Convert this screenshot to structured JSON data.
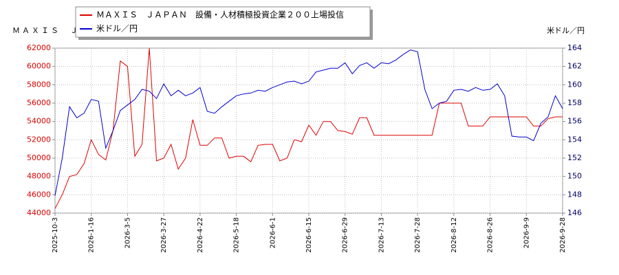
{
  "chart_data": {
    "type": "line",
    "y_label": "ＭＡＸＩＳ　ＪＡＰＡＮ　設備・人材積極投資企業２００上場投信",
    "y2_label": "米ドル／円",
    "categories": [
      "2025-10-3",
      null,
      null,
      null,
      null,
      "2026-1-16",
      null,
      null,
      null,
      null,
      "2026-3-5",
      null,
      null,
      null,
      null,
      "2026-3-27",
      null,
      null,
      null,
      null,
      "2026-4-22",
      null,
      null,
      null,
      null,
      "2026-5-18",
      null,
      null,
      null,
      null,
      "2026-6-1",
      null,
      null,
      null,
      null,
      "2026-6-15",
      null,
      null,
      null,
      null,
      "2026-6-29",
      null,
      null,
      null,
      null,
      "2026-7-13",
      null,
      null,
      null,
      null,
      "2026-7-28",
      null,
      null,
      null,
      null,
      "2026-8-12",
      null,
      null,
      null,
      null,
      "2026-8-26",
      null,
      null,
      null,
      null,
      "2026-9-9",
      null,
      null,
      null,
      null,
      "2026-9-28"
    ],
    "series": [
      {
        "name": "ＭＡＸＩＳ　ＪＡＰＡＮ　設備・人材積極投資企業２００上場投信",
        "color": "#dd0000",
        "axis": "y",
        "values": [
          44500,
          46000,
          48000,
          48200,
          49400,
          52000,
          50400,
          49800,
          53000,
          60600,
          60000,
          50200,
          51500,
          62000,
          49700,
          50000,
          51500,
          48800,
          50000,
          54200,
          51400,
          51400,
          52200,
          52200,
          50000,
          50200,
          50200,
          49600,
          51400,
          51500,
          51500,
          49700,
          50000,
          52000,
          51800,
          53600,
          52500,
          54000,
          54000,
          53000,
          52900,
          52600,
          54400,
          54400,
          52500,
          52500,
          52500,
          52500,
          52500,
          52500,
          52500,
          52500,
          52500,
          56000,
          56000,
          56000,
          56000,
          53500,
          53500,
          53500,
          54500,
          54500,
          54500,
          54500,
          54500,
          54500,
          53500,
          53500,
          54300,
          54500,
          54500
        ]
      },
      {
        "name": "米ドル／円",
        "color": "#0000cc",
        "axis": "y2",
        "values": [
          147.9,
          152,
          157.6,
          156.4,
          156.9,
          158.4,
          158.2,
          153.1,
          155,
          157.2,
          157.8,
          158.4,
          159.5,
          159.3,
          158.5,
          160.1,
          158.8,
          159.4,
          158.8,
          159.1,
          159.7,
          157.1,
          156.9,
          157.6,
          158.2,
          158.8,
          159,
          159.1,
          159.4,
          159.3,
          159.7,
          160,
          160.3,
          160.4,
          160.1,
          160.4,
          161.4,
          161.6,
          161.8,
          161.8,
          162.4,
          161.2,
          162.1,
          162.4,
          161.8,
          162.4,
          162.3,
          162.7,
          163.3,
          163.8,
          163.6,
          159.5,
          157.4,
          158,
          158.2,
          159.4,
          159.5,
          159.3,
          159.7,
          159.4,
          159.5,
          160.1,
          158.8,
          154.4,
          154.3,
          154.3,
          153.9,
          155.8,
          156.5,
          158.8,
          157.4
        ]
      }
    ],
    "ylim": [
      44000,
      62000
    ],
    "yticks": [
      44000,
      46000,
      48000,
      50000,
      52000,
      54000,
      56000,
      58000,
      60000,
      62000
    ],
    "y2lim": [
      146,
      164
    ],
    "y2ticks": [
      146,
      148,
      150,
      152,
      154,
      156,
      158,
      160,
      162,
      164
    ],
    "grid": true,
    "legend": "top-left"
  }
}
